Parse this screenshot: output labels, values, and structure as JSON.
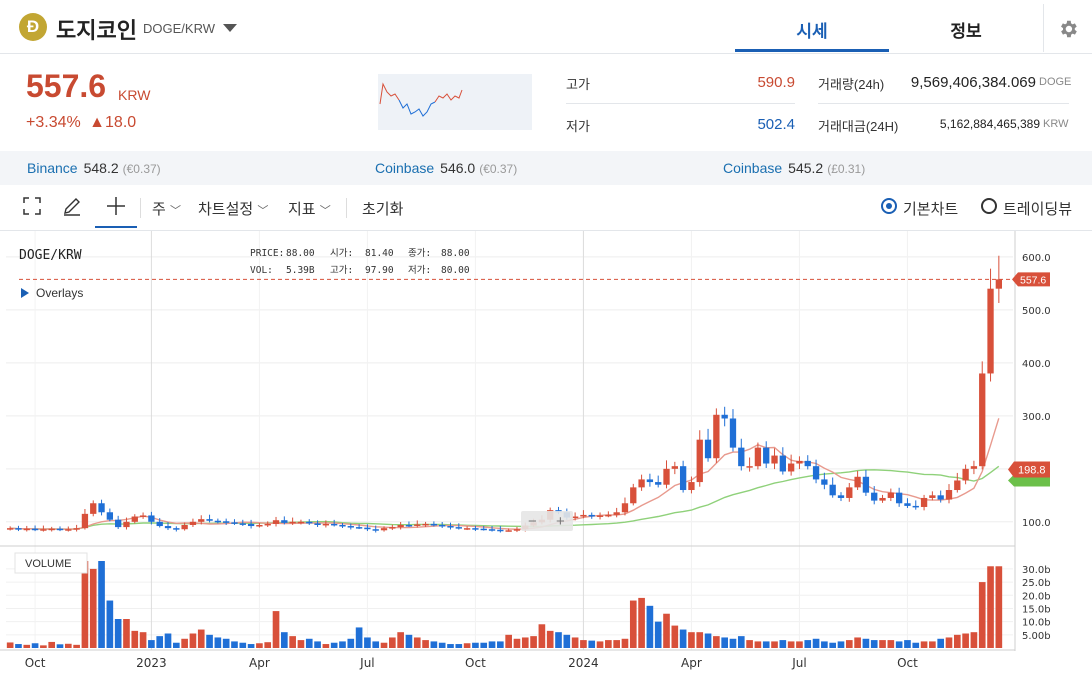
{
  "header": {
    "coin_symbol_glyph": "Ð",
    "coin_name": "도지코인",
    "pair": "DOGE/KRW",
    "tabs": [
      {
        "label": "시세",
        "active": true
      },
      {
        "label": "정보",
        "active": false
      }
    ],
    "settings_icon": "gear-icon"
  },
  "price": {
    "current": "557.6",
    "unit": "KRW",
    "change_pct": "+3.34%",
    "change_arrow": "▲",
    "change_abs": "18.0",
    "high_label": "고가",
    "high_value": "590.9",
    "low_label": "저가",
    "low_value": "502.4",
    "volume_label": "거래량(24h)",
    "volume_value": "9,569,406,384.069",
    "volume_unit": "DOGE",
    "amount_label": "거래대금(24H)",
    "amount_value": "5,162,884,465,389",
    "amount_unit": "KRW"
  },
  "exchanges": [
    {
      "name": "Binance",
      "value": "548.2",
      "sub": "(€0.37)"
    },
    {
      "name": "Coinbase",
      "value": "546.0",
      "sub": "(€0.37)"
    },
    {
      "name": "Coinbase",
      "value": "545.2",
      "sub": "(£0.31)"
    }
  ],
  "toolbar": {
    "period": "주",
    "chart_settings": "차트설정",
    "indicators": "지표",
    "reset": "초기화",
    "basic_chart": "기본차트",
    "tradingview": "트레이딩뷰"
  },
  "chart_overlay": {
    "symbol": "DOGE/KRW",
    "price_label": "PRICE:",
    "price_value": "88.00",
    "open_label": "시가:",
    "open_value": "81.40",
    "close_label": "종가:",
    "close_value": "88.00",
    "vol_label": "VOL:",
    "vol_value": "5.39B",
    "high_label": "고가:",
    "high_value": "97.90",
    "low_label": "저가:",
    "low_value": "80.00",
    "overlays": "Overlays",
    "volume_title": "VOLUME",
    "last_price_tag": "557.6",
    "ma_tag": "198.8",
    "zoom_minus": "−",
    "zoom_plus": "+"
  },
  "colors": {
    "up": "#d8503a",
    "down": "#1f6fd6",
    "ma_short": "#e89a8e",
    "ma_long": "#8fd17a",
    "accent": "#1a5fb4"
  },
  "chart_data": {
    "type": "candlestick",
    "interval": "weekly",
    "ylim": [
      60,
      630
    ],
    "y_ticks": [
      100,
      200,
      300,
      400,
      500,
      600
    ],
    "y_tick_labels": [
      "100.0",
      "200.0",
      "300.0",
      "400.0",
      "500.0",
      "600.0"
    ],
    "x_tick_labels": [
      "Oct",
      "2023",
      "Apr",
      "Jul",
      "Oct",
      "2024",
      "Apr",
      "Jul",
      "Oct"
    ],
    "volume_ticks": [
      "30.0b",
      "25.0b",
      "20.0b",
      "15.0b",
      "10.0b",
      "5.00b"
    ],
    "volume_max": 33,
    "last_price": 557.6,
    "ma_value": 198.8,
    "close": [
      88,
      86,
      87,
      85,
      86,
      87,
      85,
      86,
      88,
      115,
      135,
      118,
      104,
      90,
      100,
      110,
      112,
      100,
      92,
      88,
      86,
      94,
      100,
      105,
      102,
      101,
      99,
      97,
      96,
      92,
      94,
      96,
      103,
      98,
      100,
      100,
      97,
      94,
      96,
      94,
      92,
      90,
      89,
      86,
      84,
      88,
      90,
      94,
      93,
      95,
      96,
      94,
      92,
      90,
      88,
      88,
      87,
      86,
      85,
      84,
      84,
      86,
      93,
      99,
      104,
      122,
      118,
      108,
      110,
      113,
      110,
      112,
      113,
      118,
      135,
      165,
      180,
      175,
      170,
      200,
      205,
      160,
      175,
      255,
      220,
      302,
      295,
      240,
      205,
      205,
      240,
      210,
      225,
      195,
      210,
      215,
      205,
      180,
      170,
      150,
      145,
      165,
      185,
      155,
      140,
      145,
      155,
      135,
      130,
      128,
      145,
      150,
      142,
      160,
      178,
      200,
      205,
      380,
      540,
      557.6
    ],
    "volume_b": [
      2.1,
      1.5,
      1.2,
      1.8,
      1.0,
      2.3,
      1.4,
      1.6,
      1.2,
      33,
      30,
      33,
      18,
      11,
      11,
      6.5,
      6,
      3,
      4.5,
      5.5,
      2,
      3.5,
      5.5,
      7,
      5,
      4,
      3.5,
      2.5,
      2,
      1.5,
      1.8,
      2.2,
      14,
      6,
      4.5,
      3,
      3.5,
      2.5,
      1.5,
      2,
      2.5,
      3.5,
      7.8,
      4,
      2.5,
      2,
      4,
      6,
      5,
      4,
      3,
      2.5,
      2,
      1.5,
      1.5,
      1.8,
      2,
      2,
      2.5,
      2.5,
      5,
      3.5,
      4,
      4.5,
      9,
      6.5,
      6,
      5,
      4,
      3,
      2.8,
      2.5,
      3,
      3,
      3.5,
      18,
      19,
      16,
      10,
      13,
      8.5,
      7,
      6,
      6,
      5.5,
      4.5,
      4,
      3.5,
      4.5,
      3,
      2.5,
      2.5,
      2.5,
      3,
      2.5,
      2.5,
      3,
      3.5,
      2.5,
      2,
      2.5,
      3,
      4,
      3.5,
      3,
      3,
      3,
      2.5,
      3,
      2,
      2.5,
      2.5,
      3.5,
      4,
      5,
      5.5,
      6,
      25,
      31,
      31
    ]
  }
}
